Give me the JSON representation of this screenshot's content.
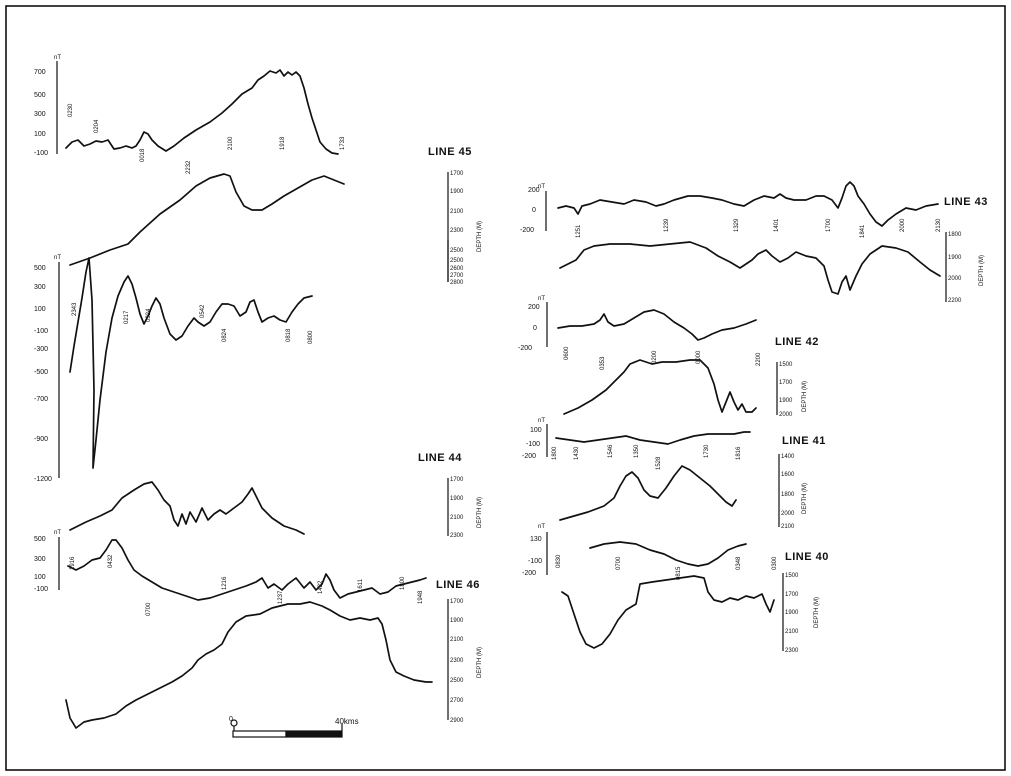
{
  "colors": {
    "paper": "#ffffff",
    "ink": "#111111"
  },
  "units": {
    "magnetic": "nT",
    "depth_axis": "DEPTH (M)"
  },
  "lines": [
    {
      "name": "LINE 45",
      "mag_ticks": [
        "700",
        "500",
        "300",
        "100",
        "-100"
      ],
      "depth_ticks": [
        "1700",
        "1900",
        "2100",
        "2300",
        "2500"
      ],
      "fix_times": [
        "0230",
        "0204",
        "0018",
        "2232",
        "2100",
        "1918",
        "1733"
      ]
    },
    {
      "name": "LINE 44",
      "mag_ticks": [
        "500",
        "300",
        "100",
        "-100",
        "-300",
        "-500",
        "-700",
        "-900",
        "-1200"
      ],
      "depth_ticks": [
        "2500",
        "2600",
        "2700",
        "2800",
        "1700",
        "1900",
        "2100",
        "2300"
      ],
      "fix_times": [
        "2343",
        "0217",
        "0324",
        "0542",
        "0824",
        "0818",
        "0800"
      ]
    },
    {
      "name": "LINE 46",
      "mag_ticks": [
        "500",
        "300",
        "100",
        "-100"
      ],
      "depth_ticks": [
        "1700",
        "1900",
        "2100",
        "2300",
        "2500",
        "2700",
        "2900"
      ],
      "fix_times": [
        "1916",
        "0432",
        "0700",
        "1216",
        "1237",
        "1422",
        "1611",
        "1800",
        "1948"
      ]
    },
    {
      "name": "LINE 43",
      "mag_ticks": [
        "200",
        "0",
        "-200"
      ],
      "depth_ticks": [
        "1800",
        "1900",
        "2000",
        "2200"
      ],
      "fix_times": [
        "1251",
        "1239",
        "1329",
        "1401",
        "1700",
        "1841",
        "2000",
        "2130"
      ]
    },
    {
      "name": "LINE 42",
      "mag_ticks": [
        "200",
        "0",
        "-200"
      ],
      "depth_ticks": [
        "1500",
        "1700",
        "1900",
        "2000"
      ],
      "fix_times": [
        "0600",
        "0353",
        "0200",
        "0000",
        "2200"
      ]
    },
    {
      "name": "LINE 41",
      "mag_ticks": [
        "100",
        "-100",
        "-200"
      ],
      "depth_ticks": [
        "1400",
        "1600",
        "1800",
        "2000",
        "2100"
      ],
      "fix_times": [
        "1800",
        "1430",
        "1546",
        "1350",
        "1528",
        "1730",
        "1816"
      ]
    },
    {
      "name": "LINE 40",
      "mag_ticks": [
        "130",
        "-100",
        "-200"
      ],
      "depth_ticks": [
        "1500",
        "1700",
        "1900",
        "2100",
        "2300"
      ],
      "fix_times": [
        "0830",
        "0700",
        "0815",
        "0348",
        "0300"
      ]
    }
  ],
  "scale_bar": {
    "label": "40kms",
    "zero": "0"
  }
}
